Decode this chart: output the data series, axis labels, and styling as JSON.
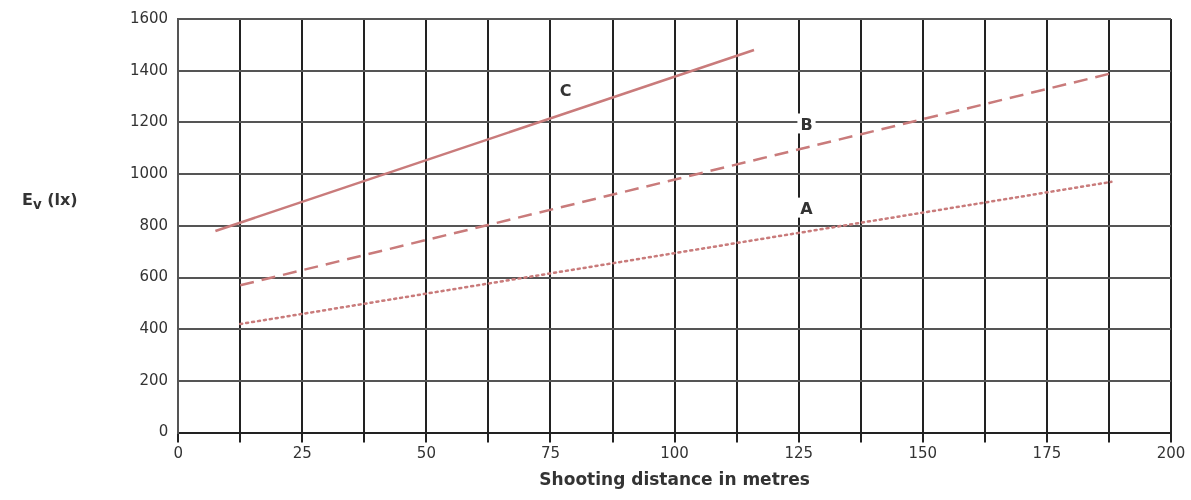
{
  "chart_data": {
    "type": "line",
    "xlabel": "Shooting distance in metres",
    "ylabel": "E$_{v}$ (lx)",
    "xlim": [
      0,
      200
    ],
    "ylim": [
      0,
      1600
    ],
    "xticks": [
      0,
      {
        "value": 12.5,
        "label": null
      },
      25,
      {
        "value": 37.5,
        "label": null
      },
      50,
      {
        "value": 62.5,
        "label": null
      },
      75,
      {
        "value": 87.5,
        "label": null
      },
      100,
      {
        "value": 112.5,
        "label": null
      },
      125,
      {
        "value": 137.5,
        "label": null
      },
      150,
      {
        "value": 162.5,
        "label": null
      },
      175,
      {
        "value": 187.5,
        "label": null
      },
      200
    ],
    "yticks": [
      0,
      200,
      400,
      600,
      800,
      1000,
      1200,
      1400,
      1600
    ],
    "grid": true,
    "marker": "none",
    "legend": false,
    "series": [
      {
        "name": "C",
        "color": "#c97b7b",
        "x": [
          7.5,
          116
        ],
        "values": [
          780,
          1480
        ],
        "line_style": "solid"
      },
      {
        "name": "B",
        "color": "#c97b7b",
        "x": [
          12.5,
          188
        ],
        "values": [
          570,
          1390
        ],
        "line_style": "dashed"
      },
      {
        "name": "A",
        "color": "#c97b7b",
        "x": [
          12.5,
          188
        ],
        "values": [
          420,
          970
        ],
        "line_style": "dotted"
      }
    ]
  }
}
